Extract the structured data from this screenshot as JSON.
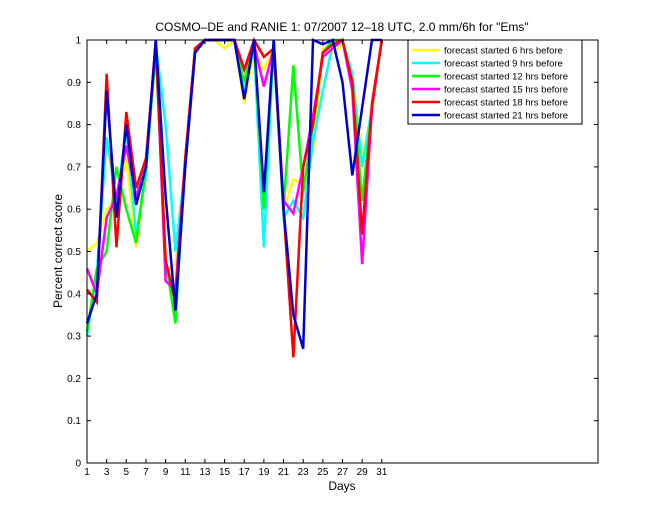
{
  "chart_data": {
    "type": "line",
    "title": "COSMO–DE and RANIE 1: 07/2007 12–18 UTC, 2.0 mm/6h for \"Ems\"",
    "xlabel": "Days",
    "ylabel": "Percent correct score",
    "xlim": [
      1,
      53
    ],
    "ylim": [
      0,
      1
    ],
    "xticks": [
      1,
      3,
      5,
      7,
      9,
      11,
      13,
      15,
      17,
      19,
      21,
      23,
      25,
      27,
      29,
      31
    ],
    "yticks": [
      0,
      0.1,
      0.2,
      0.3,
      0.4,
      0.5,
      0.6,
      0.7,
      0.8,
      0.9,
      1
    ],
    "ytick_labels": [
      "0",
      "0.1",
      "0.2",
      "0.3",
      "0.4",
      "0.5",
      "0.6",
      "0.7",
      "0.8",
      "0.9",
      "1"
    ],
    "grid": false,
    "legend_position": "top-right",
    "x": [
      1,
      2,
      3,
      4,
      5,
      6,
      7,
      8,
      9,
      10,
      11,
      12,
      13,
      14,
      15,
      16,
      17,
      18,
      19,
      20,
      21,
      22,
      23,
      24,
      25,
      26,
      27,
      28,
      29,
      30,
      31
    ],
    "series": [
      {
        "name": "forecast started 6 hrs before",
        "color": "#ffff00",
        "values": [
          0.5,
          0.52,
          0.6,
          0.62,
          0.72,
          0.51,
          0.7,
          1.0,
          0.45,
          0.47,
          0.71,
          0.98,
          1.0,
          1.0,
          0.98,
          1.0,
          0.85,
          0.97,
          0.93,
          0.98,
          0.6,
          0.67,
          0.66,
          0.74,
          0.98,
          0.97,
          0.99,
          0.92,
          0.72,
          0.83,
          1.0
        ]
      },
      {
        "name": "forecast started 9 hrs before",
        "color": "#00ffff",
        "values": [
          0.3,
          0.45,
          0.77,
          0.62,
          0.79,
          0.54,
          0.68,
          0.99,
          0.8,
          0.5,
          0.7,
          0.98,
          1.0,
          1.0,
          1.0,
          1.0,
          0.88,
          0.98,
          0.51,
          1.0,
          0.58,
          0.62,
          0.58,
          0.76,
          0.88,
          0.99,
          1.0,
          0.92,
          0.7,
          0.84,
          1.0
        ]
      },
      {
        "name": "forecast started 12 hrs before",
        "color": "#00ff00",
        "values": [
          0.31,
          0.46,
          0.5,
          0.7,
          0.6,
          0.52,
          0.7,
          0.97,
          0.48,
          0.33,
          0.72,
          0.98,
          1.0,
          1.0,
          1.0,
          1.0,
          0.9,
          1.0,
          0.6,
          1.0,
          0.6,
          0.94,
          0.64,
          0.8,
          0.97,
          1.0,
          1.0,
          0.9,
          0.62,
          0.84,
          1.0
        ]
      },
      {
        "name": "forecast started 15 hrs before",
        "color": "#ff00ff",
        "values": [
          0.46,
          0.4,
          0.58,
          0.63,
          0.75,
          0.63,
          0.7,
          1.0,
          0.43,
          0.41,
          0.72,
          0.98,
          1.0,
          1.0,
          1.0,
          1.0,
          0.93,
          0.99,
          0.89,
          0.98,
          0.62,
          0.59,
          0.7,
          0.82,
          0.96,
          0.98,
          1.0,
          0.88,
          0.47,
          0.84,
          1.0
        ]
      },
      {
        "name": "forecast started 18 hrs before",
        "color": "#ff0000",
        "values": [
          0.41,
          0.38,
          0.92,
          0.51,
          0.83,
          0.65,
          0.72,
          0.99,
          0.48,
          0.38,
          0.72,
          0.98,
          1.0,
          1.0,
          1.0,
          1.0,
          0.93,
          1.0,
          0.96,
          0.98,
          0.6,
          0.25,
          0.7,
          0.8,
          0.97,
          0.99,
          1.0,
          0.9,
          0.54,
          0.85,
          1.0
        ]
      },
      {
        "name": "forecast started 21 hrs before",
        "color": "#0000cc",
        "values": [
          0.33,
          0.4,
          0.88,
          0.58,
          0.8,
          0.61,
          0.7,
          1.0,
          0.63,
          0.36,
          0.7,
          0.97,
          1.0,
          1.0,
          1.0,
          1.0,
          0.86,
          1.0,
          0.64,
          1.0,
          0.6,
          0.35,
          0.27,
          1.0,
          0.99,
          1.0,
          0.9,
          0.68,
          0.84,
          1.0,
          1.0
        ]
      }
    ]
  }
}
